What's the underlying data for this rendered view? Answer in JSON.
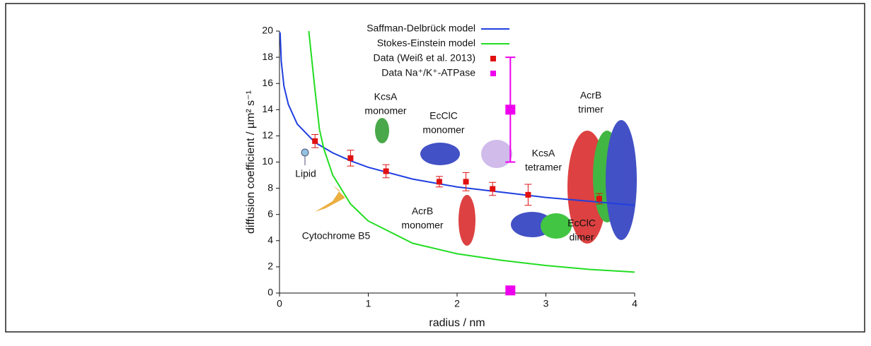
{
  "chart_data": {
    "type": "scatter",
    "xlabel": "radius / nm",
    "ylabel": "diffusion coefficient / µm² s⁻¹",
    "xlim": [
      0,
      4
    ],
    "xticks": [
      0,
      1,
      2,
      3,
      4
    ],
    "ylim": [
      0,
      20
    ],
    "yticks": [
      0,
      2,
      4,
      6,
      8,
      10,
      12,
      14,
      16,
      18,
      20
    ],
    "series": [
      {
        "name": "Saffman-Delbrück model",
        "color": "#1f3fe0",
        "kind": "line",
        "x": [
          0.007,
          0.02,
          0.05,
          0.1,
          0.2,
          0.4,
          0.6,
          0.8,
          1,
          1.5,
          2,
          2.5,
          3,
          3.5,
          4
        ],
        "values": [
          19.9,
          17.7,
          15.8,
          14.4,
          12.9,
          11.5,
          10.7,
          10.1,
          9.6,
          8.7,
          8.1,
          7.7,
          7.3,
          7.0,
          6.7
        ]
      },
      {
        "name": "Stokes-Einstein model",
        "color": "#22dd22",
        "kind": "line",
        "x": [
          0.33,
          0.4,
          0.45,
          0.5,
          0.6,
          0.8,
          1,
          1.5,
          2,
          2.5,
          3,
          3.5,
          4
        ],
        "values": [
          20,
          15.5,
          12.5,
          11,
          9,
          6.8,
          5.5,
          3.8,
          3.0,
          2.5,
          2.1,
          1.8,
          1.6
        ]
      },
      {
        "name": "Data (Weiß et al. 2013)",
        "color": "#e01010",
        "kind": "points",
        "x": [
          0.4,
          0.8,
          1.2,
          1.8,
          2.1,
          2.4,
          2.8,
          3.6
        ],
        "values": [
          11.6,
          10.3,
          9.3,
          8.5,
          8.5,
          7.95,
          7.5,
          7.2
        ],
        "errors": [
          0.5,
          0.6,
          0.5,
          0.4,
          0.7,
          0.5,
          0.8,
          0.4
        ]
      },
      {
        "name": "Data Na⁺/K⁺-ATPase",
        "color": "#ee00ee",
        "kind": "points",
        "x": [
          2.6,
          2.6
        ],
        "values": [
          14,
          0.2
        ],
        "errors": [
          4,
          null
        ]
      }
    ],
    "annotations": [
      {
        "lines": [
          "Lipid"
        ]
      },
      {
        "lines": [
          "Cytochrome B5"
        ]
      },
      {
        "lines": [
          "KcsA",
          "monomer"
        ]
      },
      {
        "lines": [
          "EcClC",
          "monomer"
        ]
      },
      {
        "lines": [
          "KcsA",
          "tetramer"
        ]
      },
      {
        "lines": [
          "AcrB",
          "trimer"
        ]
      },
      {
        "lines": [
          "AcrB",
          "monomer"
        ]
      },
      {
        "lines": [
          "EcClC",
          "dimer"
        ]
      }
    ]
  }
}
